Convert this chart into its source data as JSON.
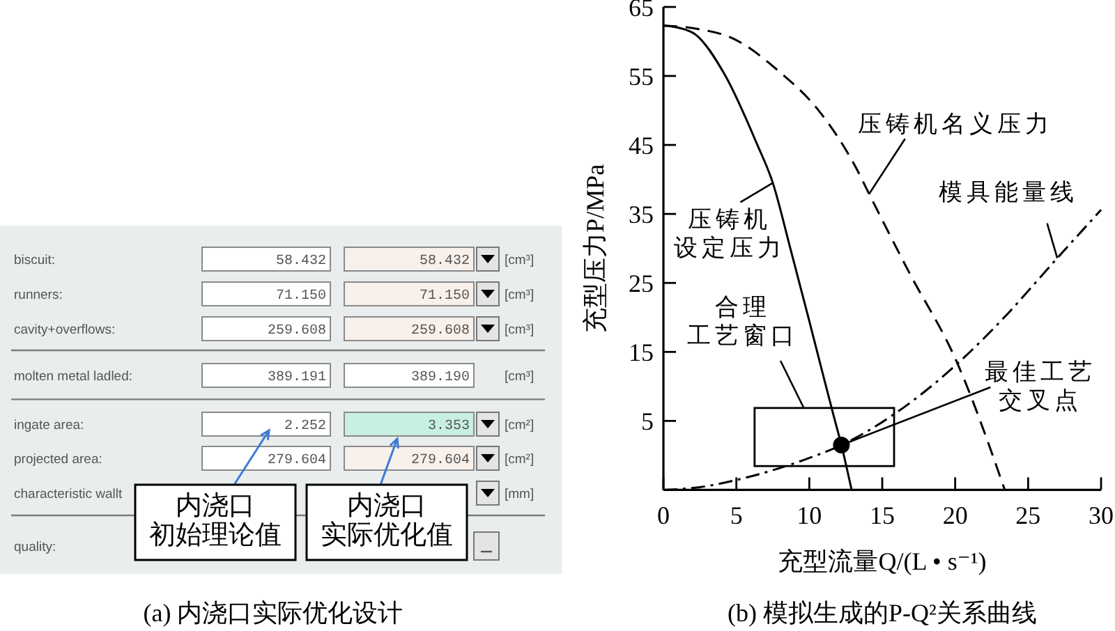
{
  "chart_data": [
    {
      "type": "other",
      "title": "(a) 内浇口实际优化设计",
      "annotations": [
        "biscuit:",
        "58.432",
        "58.432",
        "[cm³]",
        "runners:",
        "71.150",
        "71.150",
        "[cm³]",
        "cavity+overflows:",
        "259.608",
        "259.608",
        "[cm³]",
        "molten metal ladled:",
        "389.191",
        "389.190",
        "[cm³]",
        "ingate area:",
        "2.252",
        "3.353",
        "[cm²]",
        "projected area:",
        "279.604",
        "279.604",
        "[cm²]",
        "characteristic wallt",
        "[mm]",
        "quality:",
        "内浇口初始理论值",
        "内浇口实际优化值"
      ]
    },
    {
      "type": "line",
      "title": "(b) 模拟生成的P-Q²关系曲线",
      "xlabel": "充型流量Q/(L • s⁻¹)",
      "ylabel": "充型压力P/MPa",
      "xlim": [
        0,
        30
      ],
      "xticks": [
        0,
        5,
        10,
        15,
        20,
        25,
        30
      ],
      "ylim": [
        -5,
        65
      ],
      "yticks": [
        5,
        15,
        25,
        35,
        45,
        55,
        65
      ],
      "series": [
        {
          "color": "#000000",
          "line_style": "solid",
          "x": [
            0,
            1,
            2.2,
            4.2,
            6.4,
            7.5,
            8.7,
            9.9,
            11,
            11.7,
            12.2,
            12.9
          ],
          "values": [
            62.3,
            62,
            61,
            55.2,
            45.2,
            39.5,
            30,
            20.3,
            11.2,
            5.5,
            1.5,
            -5
          ]
        },
        {
          "color": "#000000",
          "line_style": "dashed",
          "x": [
            0,
            2.4,
            4.8,
            7.9,
            10.6,
            13.2,
            14.1,
            16.8,
            20.1,
            23.4
          ],
          "values": [
            62.3,
            61.8,
            60.4,
            55.7,
            50.1,
            41.7,
            37.9,
            26.7,
            13.6,
            -5
          ]
        },
        {
          "color": "#000000",
          "line_style": "dashdot",
          "x": [
            0,
            2.5,
            5.7,
            9.7,
            12.2,
            15.9,
            20.1,
            23,
            27,
            30
          ],
          "values": [
            -5,
            -4.6,
            -3.2,
            -0.6,
            1.5,
            6.1,
            13.2,
            19.2,
            28.6,
            35.6
          ]
        },
        {
          "type": "scatter",
          "color": "#000000",
          "marker": "circle",
          "x": [
            12.2
          ],
          "values": [
            1.5
          ]
        }
      ],
      "annotations": [
        {
          "text": "压铸机设定压力",
          "x": 7.5,
          "y": 39.5
        },
        {
          "text": "压铸机名义压力",
          "x": 14.1,
          "y": 37.9
        },
        {
          "text": "模具能量线",
          "x": 27,
          "y": 28.6
        },
        {
          "text": "最佳工艺交叉点",
          "x": 12.2,
          "y": 1.5
        },
        "合理工艺窗口"
      ]
    }
  ]
}
